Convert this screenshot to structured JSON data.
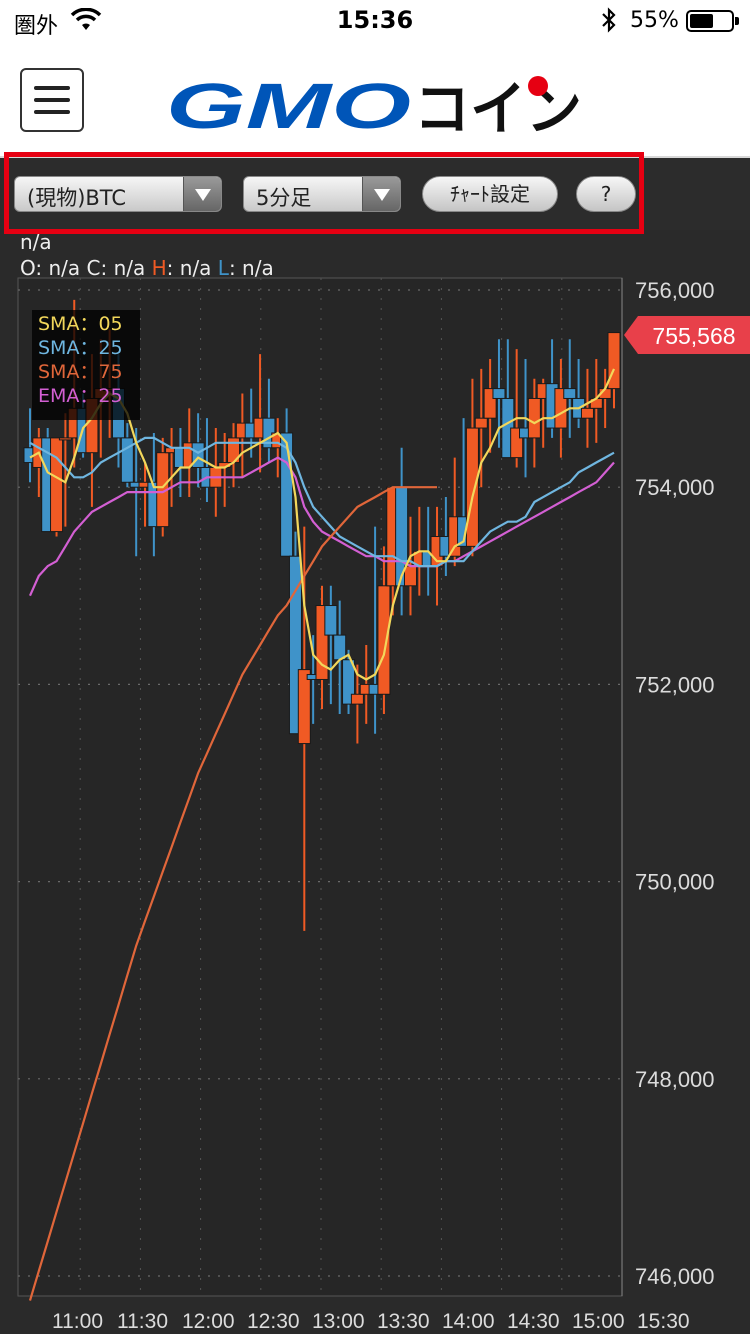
{
  "status_bar": {
    "carrier": "圏外",
    "time": "15:36",
    "battery": "55%",
    "battery_level": 0.55
  },
  "header": {
    "logo_text": "GMOコイン",
    "menu_icon": "hamburger-menu-icon"
  },
  "toolbar": {
    "symbol_select": "(現物)BTC",
    "interval_select": "5分足",
    "chart_settings_button": "ﾁｬｰﾄ設定",
    "help_button": "?"
  },
  "ohlc_info": {
    "name": "n/a",
    "o_label": "O:",
    "o_value": "n/a",
    "c_label": "C:",
    "c_value": "n/a",
    "h_label": "H",
    "h_value": ": n/a",
    "l_label": "L",
    "l_value": ": n/a"
  },
  "legend": [
    {
      "label": "SMA：05",
      "color": "#f2d75b"
    },
    {
      "label": "SMA：25",
      "color": "#6fb6e0"
    },
    {
      "label": "SMA：75",
      "color": "#e0663a"
    },
    {
      "label": "EMA：25",
      "color": "#d35fd3"
    }
  ],
  "current_price_tag": "755,568",
  "colors": {
    "up": "#f05a24",
    "down": "#3f93c9",
    "price_tag": "#e8404a",
    "highlight_outline": "#e60012"
  },
  "chart_data": {
    "type": "candlestick",
    "y_ticks": [
      "756,000",
      "754,000",
      "752,000",
      "750,000",
      "748,000",
      "746,000"
    ],
    "y_tick_values": [
      756000,
      754000,
      752000,
      750000,
      748000,
      746000
    ],
    "ylim": [
      745800,
      756300
    ],
    "x_ticks": [
      "11:00",
      "11:30",
      "12:00",
      "12:30",
      "13:00",
      "13:30",
      "14:00",
      "14:30",
      "15:00",
      "15:30"
    ],
    "candles": [
      [
        754400,
        754800,
        754050,
        754250
      ],
      [
        754200,
        754600,
        753900,
        754500
      ],
      [
        754500,
        754600,
        753550,
        753550
      ],
      [
        753550,
        754500,
        753500,
        754500
      ],
      [
        754500,
        754750,
        753600,
        754500
      ],
      [
        754500,
        755900,
        754200,
        754800
      ],
      [
        754800,
        754950,
        754300,
        754350
      ],
      [
        754350,
        755350,
        753800,
        754900
      ],
      [
        754900,
        755500,
        754300,
        755000
      ],
      [
        755000,
        755600,
        754500,
        755000
      ],
      [
        755000,
        755350,
        754200,
        754500
      ],
      [
        754500,
        754650,
        754000,
        754050
      ],
      [
        754050,
        754600,
        753300,
        754000
      ],
      [
        754000,
        754250,
        753600,
        754050
      ],
      [
        754050,
        754550,
        753300,
        753600
      ],
      [
        753600,
        754500,
        753500,
        754350
      ],
      [
        754350,
        754600,
        753800,
        754400
      ],
      [
        754400,
        754600,
        753900,
        754200
      ],
      [
        754200,
        754800,
        753900,
        754450
      ],
      [
        754450,
        754750,
        754000,
        754200
      ],
      [
        754200,
        754700,
        753850,
        754000
      ],
      [
        754000,
        754600,
        753700,
        754200
      ],
      [
        754200,
        754550,
        753800,
        754250
      ],
      [
        754250,
        754650,
        754000,
        754500
      ],
      [
        754500,
        754950,
        754100,
        754650
      ],
      [
        754650,
        755000,
        754300,
        754500
      ],
      [
        754500,
        755350,
        754150,
        754700
      ],
      [
        754700,
        755100,
        754250,
        754400
      ],
      [
        754400,
        754700,
        754100,
        754550
      ],
      [
        754550,
        754800,
        753300,
        753300
      ],
      [
        753300,
        753550,
        751600,
        751500
      ],
      [
        751400,
        753600,
        749500,
        752150
      ],
      [
        752100,
        752500,
        751600,
        752050
      ],
      [
        752050,
        753000,
        751750,
        752800
      ],
      [
        752800,
        753000,
        751800,
        752500
      ],
      [
        752500,
        752850,
        751700,
        752250
      ],
      [
        752250,
        752350,
        751700,
        751800
      ],
      [
        751800,
        752200,
        751400,
        751900
      ],
      [
        751900,
        752400,
        751600,
        752000
      ],
      [
        752000,
        753600,
        751500,
        751900
      ],
      [
        751900,
        753400,
        751700,
        753000
      ],
      [
        753000,
        754000,
        752700,
        754000
      ],
      [
        754000,
        754400,
        752700,
        753000
      ],
      [
        753000,
        753700,
        752700,
        753200
      ],
      [
        753200,
        753800,
        752900,
        753350
      ],
      [
        753350,
        753800,
        752900,
        753200
      ],
      [
        753200,
        753800,
        752800,
        753500
      ],
      [
        753500,
        753900,
        753100,
        753300
      ],
      [
        753300,
        754300,
        753200,
        753700
      ],
      [
        753700,
        754700,
        753500,
        753400
      ],
      [
        753400,
        755100,
        753300,
        754600
      ],
      [
        754600,
        755200,
        754000,
        754700
      ],
      [
        754700,
        755300,
        754350,
        755000
      ],
      [
        755000,
        755500,
        754400,
        754900
      ],
      [
        754900,
        755500,
        754400,
        754300
      ],
      [
        754300,
        755400,
        754200,
        754600
      ],
      [
        754600,
        755300,
        754100,
        754500
      ],
      [
        754500,
        755100,
        754200,
        754900
      ],
      [
        754900,
        755100,
        754400,
        755050
      ],
      [
        755050,
        755500,
        754500,
        754600
      ],
      [
        754600,
        755300,
        754300,
        755000
      ],
      [
        755000,
        755500,
        754500,
        754900
      ],
      [
        754900,
        755300,
        754600,
        754700
      ],
      [
        754700,
        755200,
        754400,
        754800
      ],
      [
        754800,
        755300,
        754450,
        754900
      ],
      [
        754900,
        755200,
        754600,
        755000
      ],
      [
        755000,
        755568,
        754800,
        755568
      ]
    ],
    "sma05": [
      754300,
      754350,
      754150,
      754100,
      754050,
      754300,
      754600,
      754700,
      754850,
      754950,
      754900,
      754750,
      754450,
      754250,
      754000,
      754000,
      754100,
      754200,
      754200,
      754300,
      754250,
      754200,
      754200,
      754250,
      754350,
      754400,
      754450,
      754500,
      754550,
      754450,
      753900,
      752800,
      752300,
      752200,
      752150,
      752250,
      752300,
      752100,
      752050,
      752100,
      752300,
      752800,
      753100,
      753300,
      753350,
      753350,
      753250,
      753250,
      753400,
      753450,
      753900,
      754250,
      754400,
      754600,
      754650,
      754700,
      754700,
      754650,
      754700,
      754700,
      754750,
      754800,
      754800,
      754850,
      754900,
      755000,
      755200
    ],
    "sma25": [
      754450,
      754400,
      754350,
      754300,
      754200,
      754100,
      754100,
      754150,
      754250,
      754300,
      754350,
      754400,
      754450,
      754500,
      754500,
      754450,
      754400,
      754400,
      754400,
      754350,
      754400,
      754450,
      754450,
      754450,
      754450,
      754450,
      754450,
      754450,
      754450,
      754400,
      754250,
      754000,
      753800,
      753700,
      753600,
      753500,
      753450,
      753400,
      753350,
      753300,
      753300,
      753300,
      753250,
      753250,
      753200,
      753200,
      753200,
      753250,
      753250,
      753250,
      753350,
      753450,
      753550,
      753600,
      753650,
      753650,
      753700,
      753850,
      753900,
      753950,
      754000,
      754050,
      754150,
      754200,
      754250,
      754300,
      754350
    ],
    "sma75_start": [
      746000
    ],
    "sma75": [
      745750,
      746050,
      746350,
      746650,
      746950,
      747250,
      747550,
      747850,
      748150,
      748450,
      748750,
      749050,
      749350,
      749600,
      749850,
      750100,
      750350,
      750600,
      750850,
      751100,
      751300,
      751500,
      751700,
      751900,
      752100,
      752250,
      752400,
      752550,
      752700,
      752800,
      752950,
      753100,
      753250,
      753400,
      753500,
      753600,
      753700,
      753800,
      753850,
      753900,
      753950,
      754000,
      754000,
      754000,
      754000,
      754000,
      754000
    ],
    "ema25": [
      752900,
      753100,
      753200,
      753250,
      753400,
      753550,
      753650,
      753750,
      753800,
      753850,
      753900,
      753950,
      753950,
      753950,
      753950,
      753950,
      754000,
      754050,
      754050,
      754050,
      754100,
      754100,
      754100,
      754100,
      754100,
      754150,
      754200,
      754250,
      754300,
      754250,
      754100,
      753800,
      753650,
      753550,
      753500,
      753450,
      753400,
      753350,
      753300,
      753300,
      753250,
      753250,
      753250,
      753200,
      753200,
      753200,
      753200,
      753250,
      753250,
      753300,
      753350,
      753400,
      753450,
      753500,
      753550,
      753600,
      753650,
      753700,
      753750,
      753800,
      753850,
      753900,
      753950,
      754000,
      754050,
      754150,
      754250
    ]
  }
}
